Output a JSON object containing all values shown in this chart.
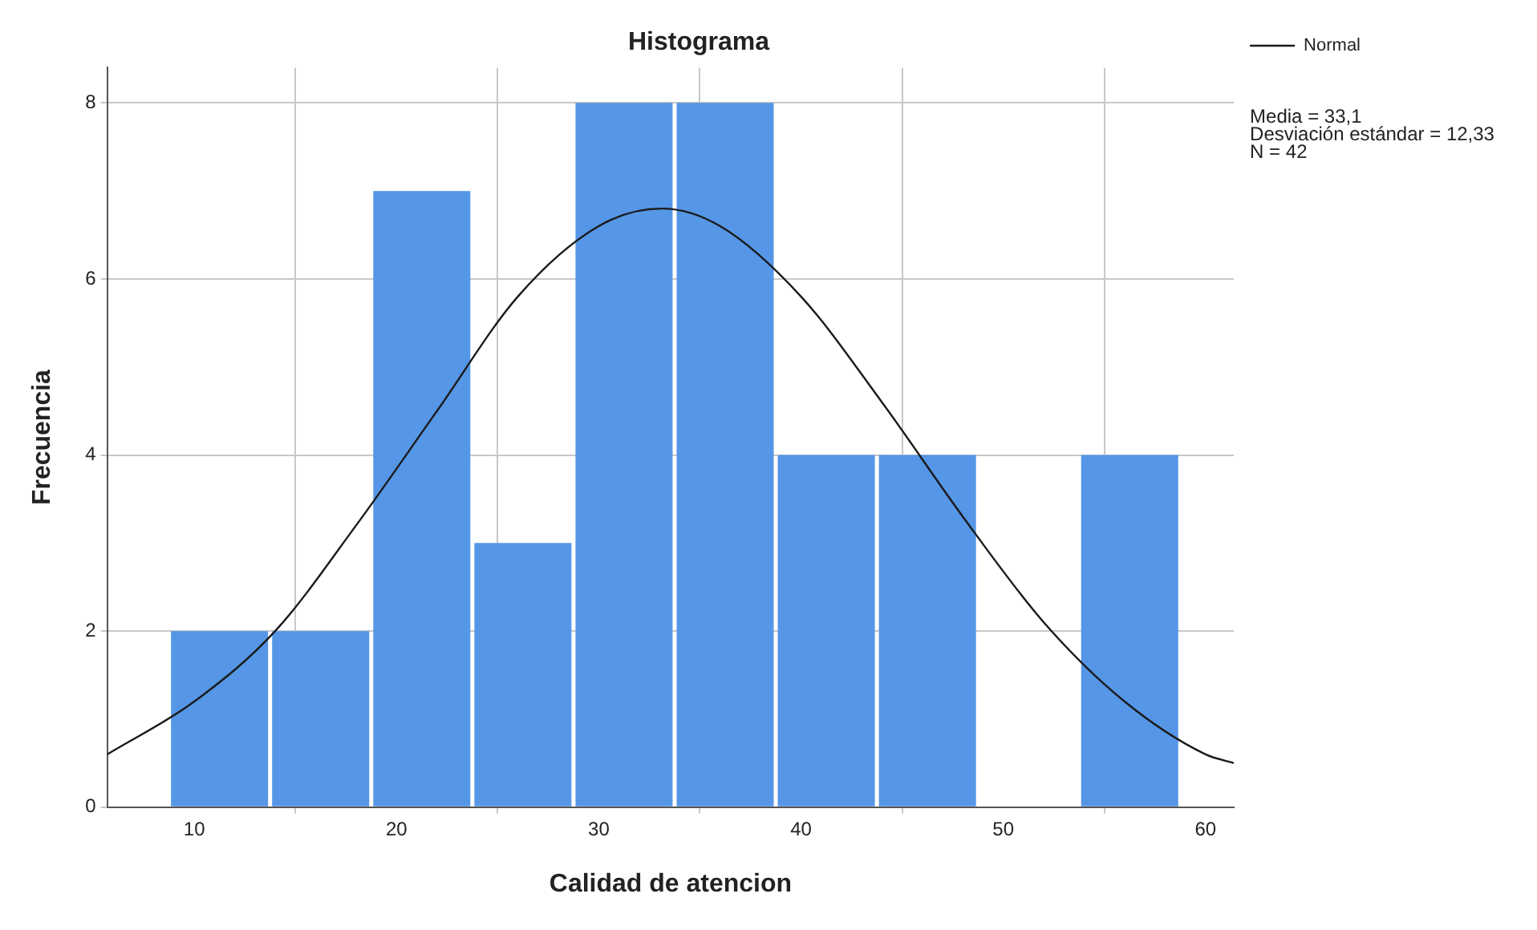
{
  "chart_data": {
    "type": "histogram",
    "title": "Histograma",
    "xlabel": "Calidad de atencion",
    "ylabel": "Frecuencia",
    "bins": [
      8.75,
      13.75,
      18.75,
      23.75,
      28.75,
      33.75,
      38.75,
      43.75,
      48.75,
      53.75,
      58.75
    ],
    "values": [
      2,
      2,
      7,
      3,
      8,
      8,
      4,
      4,
      0,
      4
    ],
    "color": "#5596e6",
    "series": [
      {
        "name": "Normal",
        "type": "line",
        "color": "#1a1a1a",
        "x": [
          5.7,
          10,
          14,
          18,
          22,
          26,
          30,
          33.1,
          36,
          40,
          44,
          48,
          52,
          56,
          60,
          61.4
        ],
        "values": [
          0.6,
          1.2,
          2.0,
          3.2,
          4.5,
          5.8,
          6.6,
          6.8,
          6.6,
          5.8,
          4.6,
          3.3,
          2.1,
          1.2,
          0.6,
          0.5
        ]
      }
    ],
    "xlim": [
      5.7,
      61.4
    ],
    "xticks": [
      10,
      20,
      30,
      40,
      50,
      60
    ],
    "ylim": [
      0,
      8.4
    ],
    "yticks": [
      0,
      2,
      4,
      6,
      8
    ],
    "grid": true,
    "legend": "top right",
    "marker": "none",
    "annotations": [
      "Media = 33,1",
      "Desviación estándar = 12,33",
      "N = 42"
    ]
  }
}
